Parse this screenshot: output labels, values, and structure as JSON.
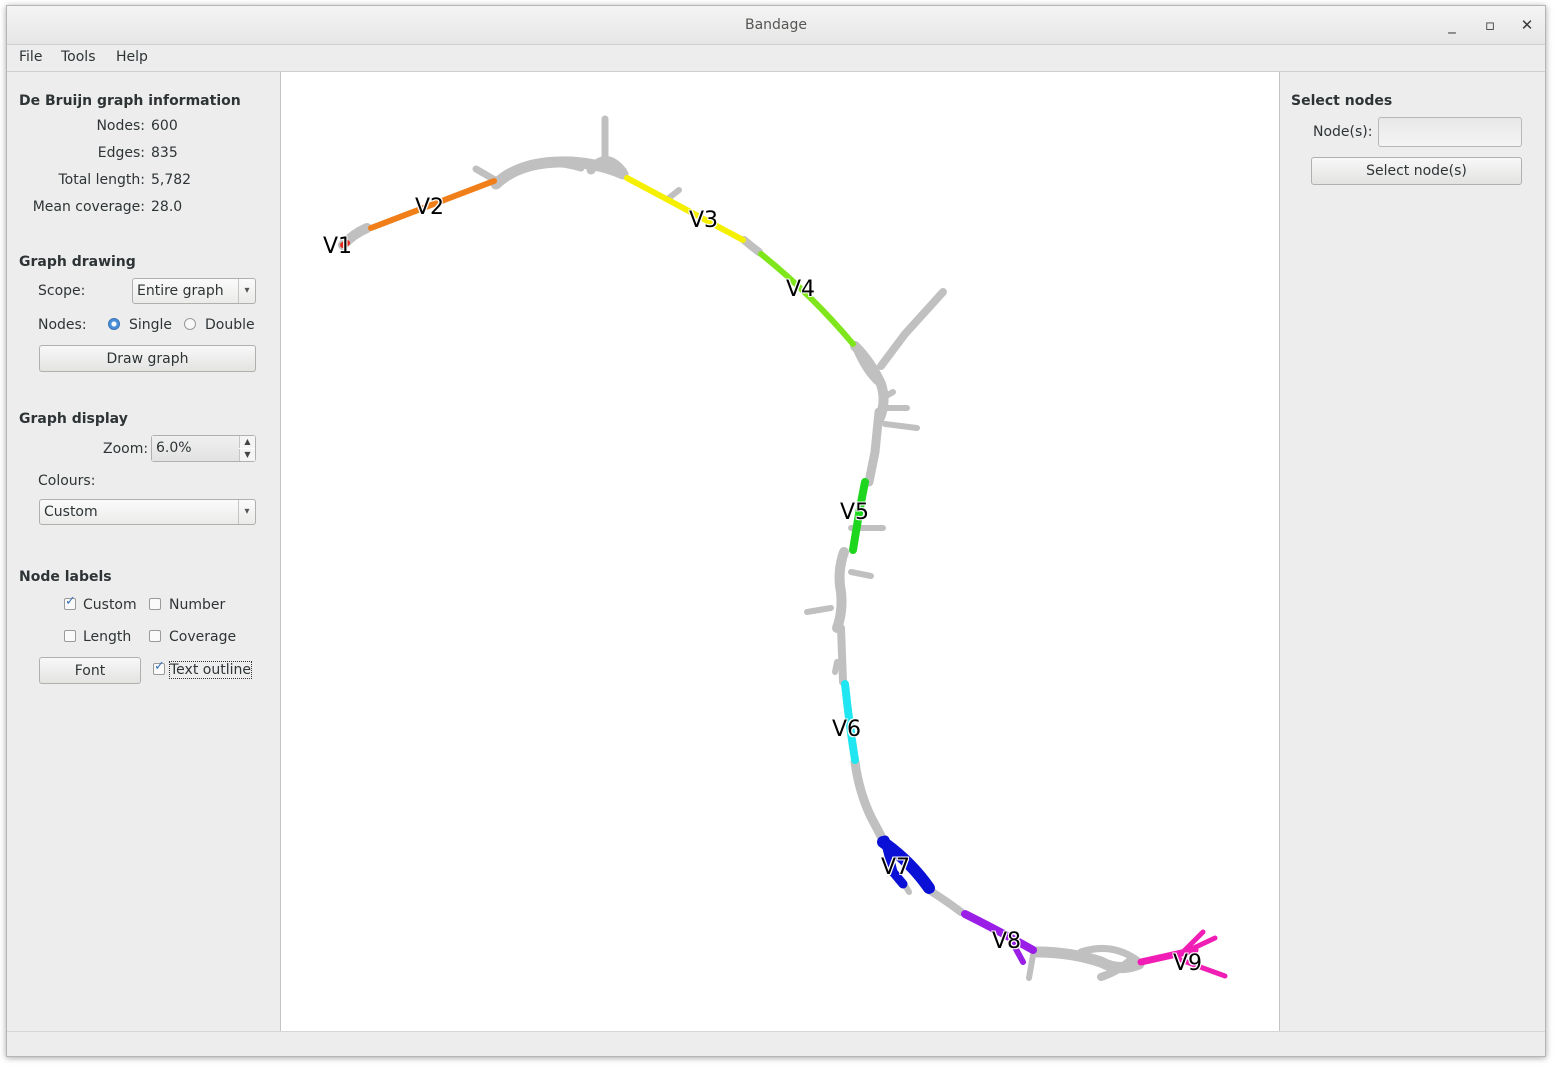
{
  "window": {
    "title": "Bandage"
  },
  "menu": [
    "File",
    "Tools",
    "Help"
  ],
  "graph_info": {
    "heading": "De Bruijn graph information",
    "rows": [
      {
        "label": "Nodes:",
        "value": "600"
      },
      {
        "label": "Edges:",
        "value": "835"
      },
      {
        "label": "Total length:",
        "value": "5,782"
      },
      {
        "label": "Mean coverage:",
        "value": "28.0"
      }
    ]
  },
  "graph_drawing": {
    "heading": "Graph drawing",
    "scope_label": "Scope:",
    "scope_value": "Entire graph",
    "nodes_label": "Nodes:",
    "single_label": "Single",
    "double_label": "Double",
    "single_selected": true,
    "draw_button": "Draw graph"
  },
  "graph_display": {
    "heading": "Graph display",
    "zoom_label": "Zoom:",
    "zoom_value": "6.0%",
    "colours_label": "Colours:",
    "colours_value": "Custom"
  },
  "node_labels": {
    "heading": "Node labels",
    "custom": {
      "label": "Custom",
      "checked": true
    },
    "number": {
      "label": "Number",
      "checked": false
    },
    "length": {
      "label": "Length",
      "checked": false
    },
    "coverage": {
      "label": "Coverage",
      "checked": false
    },
    "font_button": "Font",
    "text_outline": {
      "label": "Text outline",
      "checked": true
    }
  },
  "select_nodes": {
    "heading": "Select nodes",
    "nodes_label": "Node(s):",
    "nodes_value": "",
    "select_button": "Select node(s)"
  },
  "graph": {
    "labels": [
      "V1",
      "V2",
      "V3",
      "V4",
      "V5",
      "V6",
      "V7",
      "V8",
      "V9"
    ],
    "colors": {
      "grey": "#c0c0c0",
      "V1": "#e8281e",
      "V2": "#f07f1a",
      "V3": "#f5f000",
      "V4": "#7fe61c",
      "V5": "#1fd61f",
      "V6": "#1fe6f0",
      "V7": "#0a10d6",
      "V8": "#9a1ee6",
      "V9": "#f01eb4"
    }
  }
}
